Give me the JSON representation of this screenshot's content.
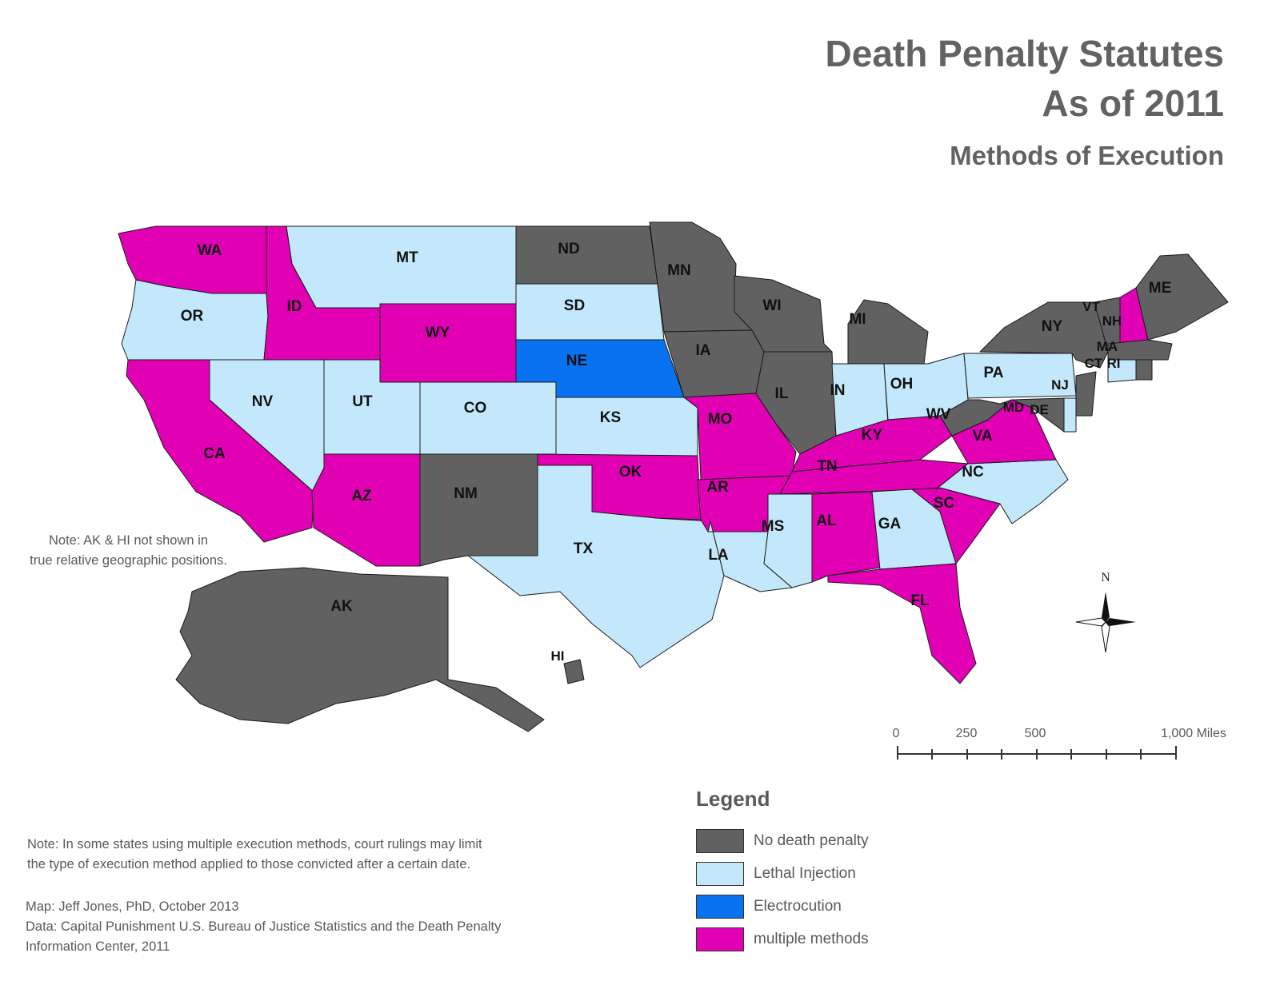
{
  "title": "Death Penalty Statutes",
  "title2": "As of 2011",
  "subtitle": "Methods of Execution",
  "colors": {
    "none": "#616161",
    "lethal": "#c3e8fb",
    "electrocution": "#0872f0",
    "multiple": "#e100b4"
  },
  "legend": {
    "title": "Legend",
    "items": [
      {
        "label": "No death penalty",
        "category": "none"
      },
      {
        "label": "Lethal Injection",
        "category": "lethal"
      },
      {
        "label": "Electrocution",
        "category": "electrocution"
      },
      {
        "label": "multiple methods",
        "category": "multiple"
      }
    ]
  },
  "states": {
    "WA": "multiple",
    "OR": "lethal",
    "CA": "multiple",
    "ID": "multiple",
    "NV": "lethal",
    "MT": "lethal",
    "WY": "multiple",
    "UT": "lethal",
    "CO": "lethal",
    "AZ": "multiple",
    "NM": "none",
    "ND": "none",
    "SD": "lethal",
    "NE": "electrocution",
    "KS": "lethal",
    "OK": "multiple",
    "TX": "lethal",
    "MN": "none",
    "IA": "none",
    "MO": "multiple",
    "AR": "multiple",
    "LA": "lethal",
    "WI": "none",
    "IL": "none",
    "MI": "none",
    "IN": "lethal",
    "OH": "lethal",
    "KY": "multiple",
    "TN": "multiple",
    "MS": "lethal",
    "AL": "multiple",
    "GA": "lethal",
    "FL": "multiple",
    "SC": "multiple",
    "NC": "lethal",
    "VA": "multiple",
    "WV": "none",
    "PA": "lethal",
    "NY": "none",
    "VT": "none",
    "NH": "multiple",
    "ME": "none",
    "MA": "none",
    "CT": "lethal",
    "RI": "none",
    "NJ": "none",
    "DE": "lethal",
    "MD": "none",
    "AK": "none",
    "HI": "none"
  },
  "state_labels": {
    "WA": "WA",
    "OR": "OR",
    "CA": "CA",
    "ID": "ID",
    "NV": "NV",
    "MT": "MT",
    "WY": "WY",
    "UT": "UT",
    "CO": "CO",
    "AZ": "AZ",
    "NM": "NM",
    "ND": "ND",
    "SD": "SD",
    "NE": "NE",
    "KS": "KS",
    "OK": "OK",
    "TX": "TX",
    "MN": "MN",
    "IA": "IA",
    "MO": "MO",
    "AR": "AR",
    "LA": "LA",
    "WI": "WI",
    "IL": "IL",
    "MI": "MI",
    "IN": "IN",
    "OH": "OH",
    "KY": "KY",
    "TN": "TN",
    "MS": "MS",
    "AL": "AL",
    "GA": "GA",
    "FL": "FL",
    "SC": "SC",
    "NC": "NC",
    "VA": "VA",
    "WV": "WV",
    "PA": "PA",
    "NY": "NY",
    "VT": "VT",
    "NH": "NH",
    "ME": "ME",
    "MA": "MA",
    "CT": "CT",
    "RI": "RI",
    "NJ": "NJ",
    "DE": "DE",
    "MD": "MD",
    "AK": "AK",
    "HI": "HI"
  },
  "notes": {
    "akhi_line1": "Note:  AK & HI not shown in",
    "akhi_line2": "true relative geographic positions.",
    "methods_line1": "Note:  In some states using multiple execution methods, court rulings may limit",
    "methods_line2": "the type of execution method applied to those convicted after a certain date.",
    "credit_map": "Map:  Jeff Jones, PhD, October 2013",
    "credit_data1": "Data:  Capital Punishment U.S. Bureau of Justice Statistics and the Death Penalty",
    "credit_data2": "Information Center, 2011"
  },
  "scale_bar": {
    "labels": [
      "0",
      "250",
      "500",
      "1,000 Miles"
    ]
  },
  "north_label": "N"
}
